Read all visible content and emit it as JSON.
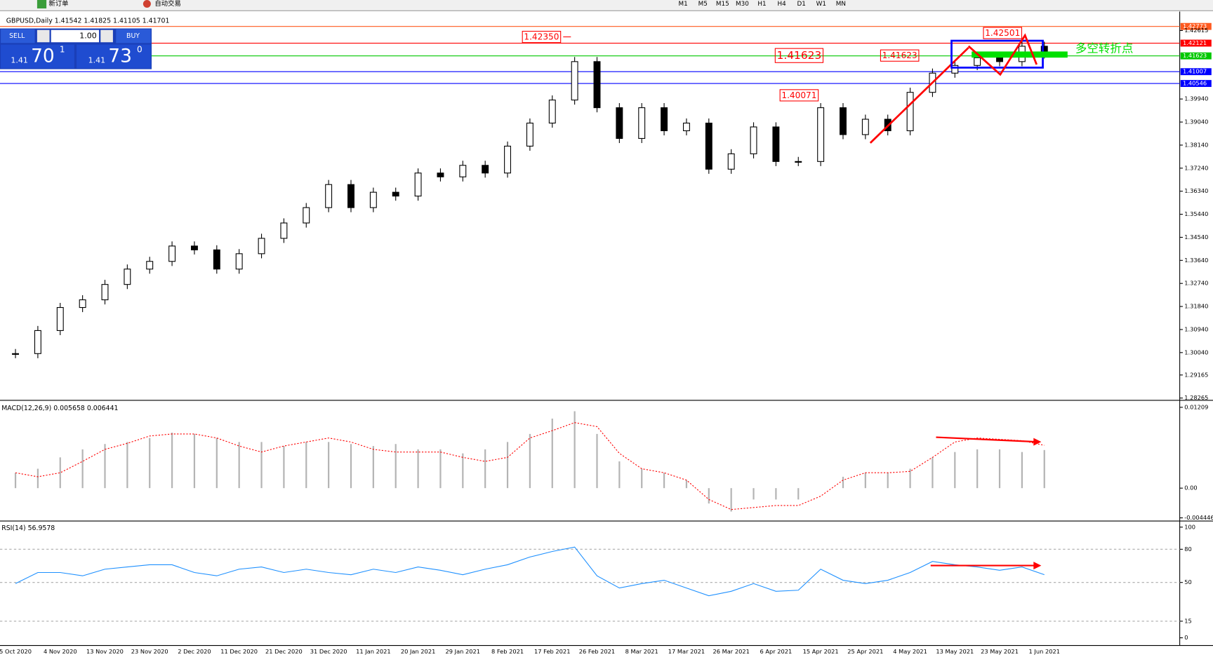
{
  "toolbar": {
    "items": [
      "新订单",
      "自动交易"
    ],
    "timeframes": [
      "M1",
      "M5",
      "M15",
      "M30",
      "H1",
      "H4",
      "D1",
      "W1",
      "MN"
    ]
  },
  "trade_panel": {
    "sell": "SELL",
    "lot": "1.00",
    "buy": "BUY",
    "sell_price": {
      "big": "1.41",
      "pips": "70",
      "frac": "1"
    },
    "buy_price": {
      "big": "1.41",
      "pips": "73",
      "frac": "0"
    }
  },
  "chart_data": [
    {
      "type": "candlestick",
      "title": "GBPUSD,Daily",
      "header_values": [
        1.41542,
        1.41825,
        1.41105,
        1.41701
      ],
      "categories": [
        "5 Oct 2020",
        null,
        "4 Nov 2020",
        null,
        "13 Nov 2020",
        null,
        "23 Nov 2020",
        null,
        "2 Dec 2020",
        null,
        "11 Dec 2020",
        null,
        "21 Dec 2020",
        null,
        "31 Dec 2020",
        null,
        "11 Jan 2021",
        null,
        "20 Jan 2021",
        null,
        "29 Jan 2021",
        null,
        "8 Feb 2021",
        null,
        "17 Feb 2021",
        null,
        "26 Feb 2021",
        null,
        "8 Mar 2021",
        null,
        "17 Mar 2021",
        null,
        "26 Mar 2021",
        null,
        "6 Apr 2021",
        null,
        "15 Apr 2021",
        null,
        "25 Apr 2021",
        null,
        "4 May 2021",
        null,
        "13 May 2021",
        null,
        "23 May 2021",
        null,
        "1 Jun 2021"
      ],
      "values": [
        1.3,
        1.309,
        1.318,
        1.321,
        1.327,
        1.333,
        1.336,
        1.342,
        1.3405,
        1.333,
        1.339,
        1.345,
        1.351,
        1.357,
        1.366,
        1.357,
        1.363,
        1.3615,
        1.3705,
        1.369,
        1.3735,
        1.3705,
        1.381,
        1.39,
        1.399,
        1.414,
        1.396,
        1.384,
        1.396,
        1.387,
        1.39,
        1.372,
        1.378,
        1.3885,
        1.375,
        1.375,
        1.396,
        1.3855,
        1.3915,
        1.387,
        1.402,
        1.4095,
        1.4125,
        1.4155,
        1.414,
        1.42,
        1.41701
      ],
      "ylim": [
        1.28265,
        1.43265
      ],
      "yticks": [
        1.28265,
        1.29165,
        {
          "value": 1.3004,
          "label": "1.30040"
        },
        {
          "value": 1.3094,
          "label": "1.30940"
        },
        {
          "value": 1.3184,
          "label": "1.31840"
        },
        {
          "value": 1.3274,
          "label": "1.32740"
        },
        {
          "value": 1.3364,
          "label": "1.33640"
        },
        {
          "value": 1.3454,
          "label": "1.34540"
        },
        {
          "value": 1.3544,
          "label": "1.35440"
        },
        {
          "value": 1.3634,
          "label": "1.36340"
        },
        {
          "value": 1.3724,
          "label": "1.37240"
        },
        {
          "value": 1.3814,
          "label": "1.38140"
        },
        {
          "value": 1.3904,
          "label": "1.39040"
        },
        {
          "value": 1.3994,
          "label": "1.39940"
        },
        1.42615
      ],
      "levels": [
        {
          "value": 1.42773,
          "color": "#ff5a1f"
        },
        {
          "value": 1.42121,
          "color": "#ff0000"
        },
        {
          "value": 1.41623,
          "color": "#00c800"
        },
        {
          "value": 1.41007,
          "color": "#0000ff"
        },
        {
          "value": 1.40546,
          "color": "#0000ff"
        }
      ],
      "annotations": [
        {
          "value": 1.4235,
          "label": "1.42350"
        },
        1.41623,
        1.41623,
        1.40071,
        1.42501
      ],
      "annotation_text": "多空转折点"
    },
    {
      "type": "macd",
      "title": "MACD(12,26,9)",
      "header_values": [
        0.005658,
        0.006441
      ],
      "series": [
        {
          "color": "#b4b4b4",
          "values": [
            0.0023,
            0.0029,
            0.0046,
            0.0058,
            0.0066,
            0.0069,
            0.0075,
            0.0083,
            0.0081,
            0.0075,
            0.0069,
            0.0069,
            0.0063,
            0.0069,
            0.0069,
            0.0066,
            0.0063,
            0.0066,
            0.0058,
            0.0058,
            0.0052,
            0.0058,
            0.0069,
            0.0081,
            0.0104,
            0.0115,
            0.0081,
            0.004,
            0.0029,
            0.0023,
            0.0012,
            -0.0023,
            -0.0035,
            -0.0017,
            -0.0017,
            -0.0017,
            0.0,
            0.0017,
            0.0023,
            0.0023,
            0.0029,
            0.0046,
            0.0054,
            0.0058,
            0.0058,
            0.0054,
            0.0057
          ]
        },
        {
          "color": "#ff0000",
          "values": [
            0.0023,
            0.0017,
            0.0023,
            0.004,
            0.0058,
            0.0067,
            0.0078,
            0.0081,
            0.0081,
            0.0075,
            0.0063,
            0.0054,
            0.0063,
            0.0069,
            0.0075,
            0.0069,
            0.0058,
            0.0054,
            0.0054,
            0.0054,
            0.0046,
            0.004,
            0.0046,
            0.0075,
            0.0086,
            0.0098,
            0.0092,
            0.0052,
            0.0029,
            0.0023,
            0.0012,
            -0.0017,
            -0.0032,
            -0.0029,
            -0.0026,
            -0.0026,
            -0.0012,
            0.0012,
            0.0023,
            0.0023,
            0.0025,
            0.0046,
            0.0069,
            0.0075,
            0.0073,
            0.0071,
            0.0064
          ]
        }
      ],
      "ylim": [
        -0.0048,
        0.0129
      ],
      "yticks": [
        0.01209,
        {
          "value": 0,
          "label": "0.00"
        },
        -0.004446
      ]
    },
    {
      "type": "line",
      "title": "RSI(14)",
      "header_values": [
        56.9578
      ],
      "color": "#1e90ff",
      "values": [
        49,
        59,
        59,
        56,
        62,
        64,
        66,
        66,
        59,
        56,
        62,
        64,
        59,
        62,
        59,
        57,
        62,
        59,
        64,
        61,
        57,
        62,
        66,
        73,
        78,
        82,
        56,
        45,
        49,
        52,
        45,
        38,
        42,
        49,
        42,
        43,
        62,
        52,
        49,
        52,
        59,
        69,
        66,
        64,
        61,
        64,
        57
      ],
      "ylim": [
        0,
        100
      ],
      "yticks": [
        100,
        80,
        50,
        15,
        0
      ],
      "grid": true
    }
  ]
}
